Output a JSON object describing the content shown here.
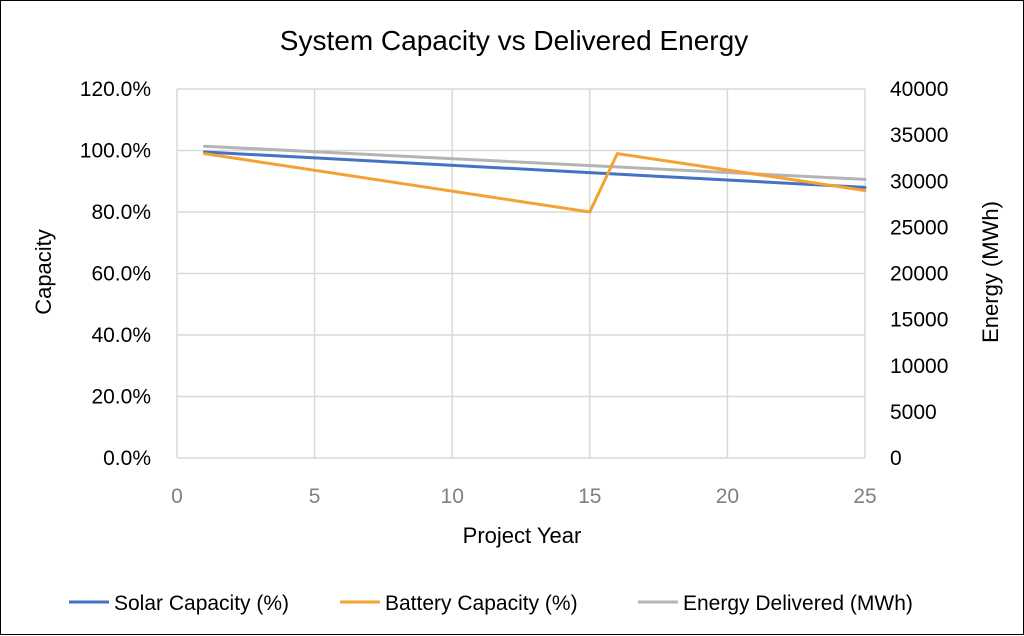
{
  "chart_data": {
    "type": "line",
    "title": "System Capacity vs Delivered Energy",
    "xlabel": "Project Year",
    "ylabel_left": "Capacity",
    "ylabel_right": "Energy (MWh)",
    "xlim": [
      0,
      25
    ],
    "x_ticks": [
      "0",
      "5",
      "10",
      "15",
      "20",
      "25"
    ],
    "ylim_left": [
      0,
      1.2
    ],
    "y_ticks_left": [
      "0.0%",
      "20.0%",
      "40.0%",
      "60.0%",
      "80.0%",
      "100.0%",
      "120.0%"
    ],
    "ylim_right": [
      0,
      40000
    ],
    "y_ticks_right": [
      "0",
      "5000",
      "10000",
      "15000",
      "20000",
      "25000",
      "30000",
      "35000",
      "40000"
    ],
    "grid": true,
    "legend_position": "bottom",
    "series": [
      {
        "name": "Solar Capacity (%)",
        "axis": "left",
        "color": "#4472C4",
        "x": [
          1,
          25
        ],
        "y": [
          0.995,
          0.88
        ]
      },
      {
        "name": "Battery Capacity (%)",
        "axis": "left",
        "color": "#F4A233",
        "x": [
          1,
          15,
          16,
          25
        ],
        "y": [
          0.99,
          0.8,
          0.99,
          0.87
        ]
      },
      {
        "name": "Energy Delivered (MWh)",
        "axis": "right",
        "color": "#B4B4B4",
        "x": [
          1,
          25
        ],
        "y": [
          33800,
          30200
        ]
      }
    ]
  }
}
